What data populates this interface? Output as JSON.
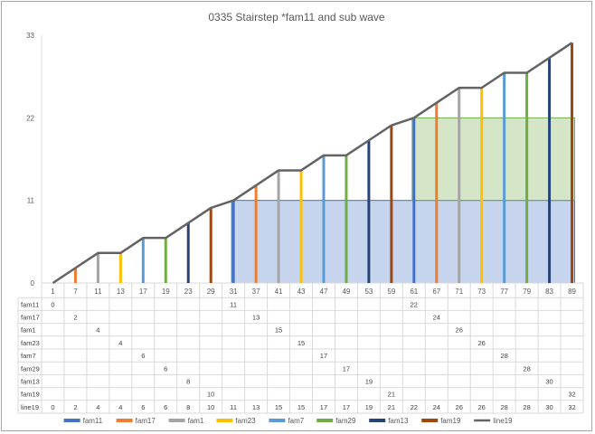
{
  "chart_data": {
    "type": "bar",
    "title": "0335 Stairstep *fam11 and sub wave",
    "ylim": [
      0,
      33
    ],
    "yticks": [
      0,
      11,
      22,
      33
    ],
    "grid": false,
    "legend_position": "bottom",
    "categories": [
      "1",
      "7",
      "11",
      "13",
      "17",
      "19",
      "23",
      "29",
      "31",
      "37",
      "41",
      "43",
      "47",
      "49",
      "53",
      "59",
      "61",
      "67",
      "71",
      "73",
      "77",
      "79",
      "83",
      "89"
    ],
    "series": [
      {
        "name": "fam11",
        "color": "#4472C4",
        "values": [
          0,
          null,
          null,
          null,
          null,
          null,
          null,
          null,
          11,
          null,
          null,
          null,
          null,
          null,
          null,
          null,
          22,
          null,
          null,
          null,
          null,
          null,
          null,
          null
        ]
      },
      {
        "name": "fam17",
        "color": "#ED7D31",
        "values": [
          null,
          2,
          null,
          null,
          null,
          null,
          null,
          null,
          null,
          13,
          null,
          null,
          null,
          null,
          null,
          null,
          null,
          24,
          null,
          null,
          null,
          null,
          null,
          null
        ]
      },
      {
        "name": "fam1",
        "color": "#A5A5A5",
        "values": [
          null,
          null,
          4,
          null,
          null,
          null,
          null,
          null,
          null,
          null,
          15,
          null,
          null,
          null,
          null,
          null,
          null,
          null,
          26,
          null,
          null,
          null,
          null,
          null
        ]
      },
      {
        "name": "fam23",
        "color": "#FFC000",
        "values": [
          null,
          null,
          null,
          4,
          null,
          null,
          null,
          null,
          null,
          null,
          null,
          15,
          null,
          null,
          null,
          null,
          null,
          null,
          null,
          26,
          null,
          null,
          null,
          null
        ]
      },
      {
        "name": "fam7",
        "color": "#5B9BD5",
        "values": [
          null,
          null,
          null,
          null,
          6,
          null,
          null,
          null,
          null,
          null,
          null,
          null,
          17,
          null,
          null,
          null,
          null,
          null,
          null,
          null,
          28,
          null,
          null,
          null
        ]
      },
      {
        "name": "fam29",
        "color": "#70AD47",
        "values": [
          null,
          null,
          null,
          null,
          null,
          6,
          null,
          null,
          null,
          null,
          null,
          null,
          null,
          17,
          null,
          null,
          null,
          null,
          null,
          null,
          null,
          28,
          null,
          null
        ]
      },
      {
        "name": "fam13",
        "color": "#264478",
        "values": [
          null,
          null,
          null,
          null,
          null,
          null,
          8,
          null,
          null,
          null,
          null,
          null,
          null,
          null,
          19,
          null,
          null,
          null,
          null,
          null,
          null,
          null,
          30,
          null
        ]
      },
      {
        "name": "fam19",
        "color": "#9E480E",
        "values": [
          null,
          null,
          null,
          null,
          null,
          null,
          null,
          10,
          null,
          null,
          null,
          null,
          null,
          null,
          null,
          21,
          null,
          null,
          null,
          null,
          null,
          null,
          null,
          32
        ]
      },
      {
        "name": "line19",
        "color": "#636363",
        "type": "line",
        "values": [
          0,
          2,
          4,
          4,
          6,
          6,
          8,
          10,
          11,
          13,
          15,
          15,
          17,
          17,
          19,
          21,
          22,
          24,
          26,
          26,
          28,
          28,
          30,
          32
        ]
      }
    ],
    "shaded_regions": [
      {
        "from_category": "31",
        "to_category": "89",
        "y_from": 0,
        "y_to": 11,
        "color": "#4472C4"
      },
      {
        "from_category": "61",
        "to_category": "89",
        "y_from": 11,
        "y_to": 22,
        "color": "#70AD47"
      }
    ]
  }
}
